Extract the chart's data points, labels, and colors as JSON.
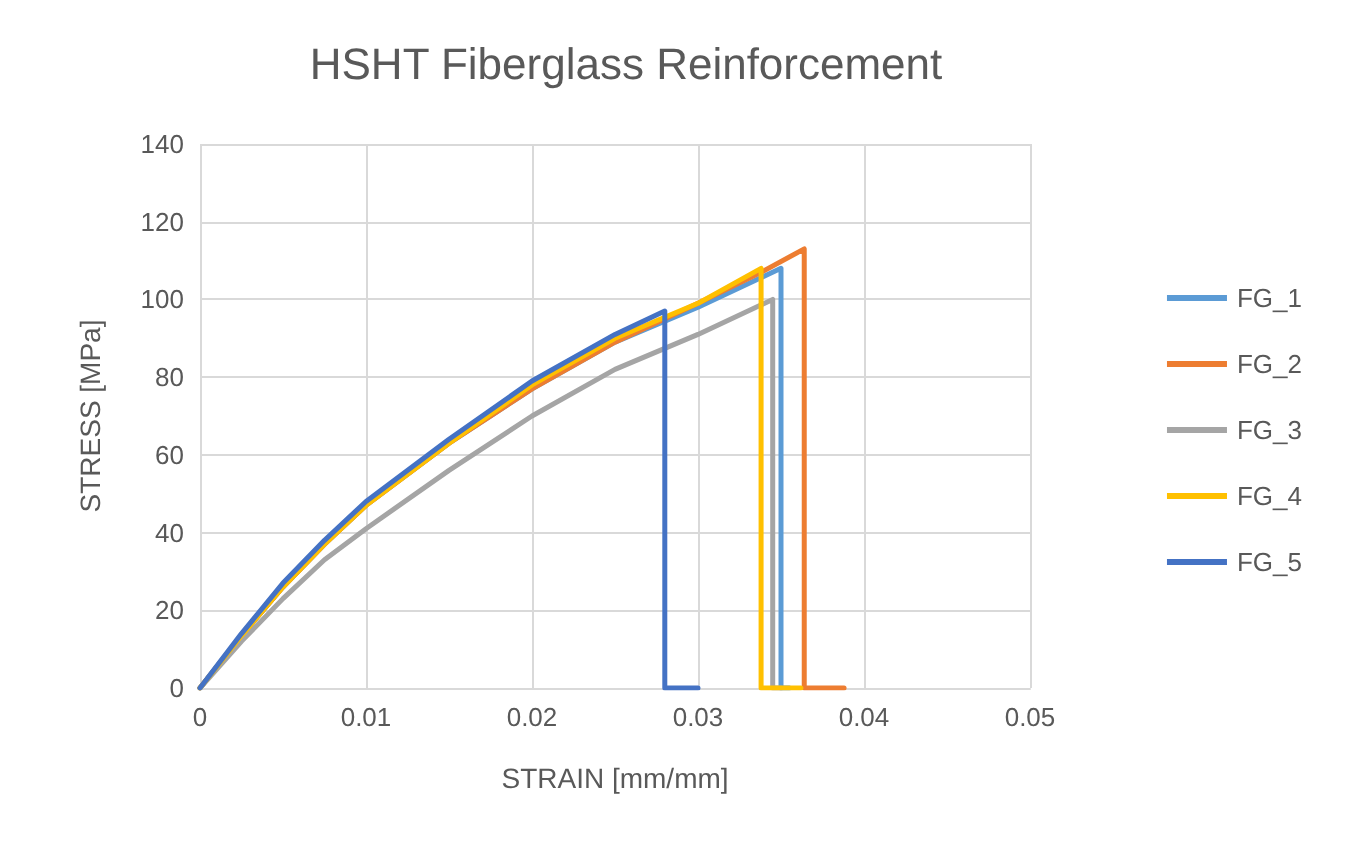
{
  "chart_data": {
    "type": "line",
    "title": "HSHT Fiberglass Reinforcement",
    "xlabel": "STRAIN [mm/mm]",
    "ylabel": "STRESS [MPa]",
    "xlim": [
      0,
      0.05
    ],
    "xticks": [
      0,
      0.01,
      0.02,
      0.03,
      0.04,
      0.05
    ],
    "ylim": [
      0,
      140
    ],
    "yticks": [
      0,
      20,
      40,
      60,
      80,
      100,
      120,
      140
    ],
    "grid": true,
    "legend": "right",
    "marker": "none",
    "line_style": "solid",
    "series": [
      {
        "name": "FG_1",
        "color": "#5b9bd5",
        "x": [
          0,
          0.0025,
          0.005,
          0.0075,
          0.01,
          0.015,
          0.02,
          0.025,
          0.03,
          0.035,
          0.035,
          0.0355
        ],
        "values": [
          0,
          13.5,
          26,
          37,
          47,
          63,
          77,
          89,
          98,
          108,
          0,
          0
        ]
      },
      {
        "name": "FG_2",
        "color": "#ed7d31",
        "x": [
          0,
          0.0025,
          0.005,
          0.0075,
          0.01,
          0.015,
          0.02,
          0.025,
          0.03,
          0.0338,
          0.0364,
          0.0364,
          0.0388
        ],
        "values": [
          0,
          13.5,
          26,
          37,
          47,
          63,
          77,
          89,
          99,
          107,
          113,
          0,
          0
        ]
      },
      {
        "name": "FG_3",
        "color": "#a5a5a5",
        "x": [
          0,
          0.0025,
          0.005,
          0.0075,
          0.01,
          0.015,
          0.02,
          0.025,
          0.03,
          0.0345,
          0.0345,
          0.035
        ],
        "values": [
          0,
          12,
          23,
          33,
          41,
          56,
          70,
          82,
          91,
          100,
          0,
          0
        ]
      },
      {
        "name": "FG_4",
        "color": "#ffc000",
        "x": [
          0,
          0.0025,
          0.005,
          0.0075,
          0.01,
          0.015,
          0.02,
          0.025,
          0.03,
          0.0338,
          0.0338,
          0.0362
        ],
        "values": [
          0,
          13.5,
          26,
          37,
          47,
          63,
          78,
          90,
          99,
          108,
          0,
          0
        ]
      },
      {
        "name": "FG_5",
        "color": "#4472c4",
        "x": [
          0,
          0.0025,
          0.005,
          0.0075,
          0.01,
          0.015,
          0.02,
          0.025,
          0.028,
          0.028,
          0.03
        ],
        "values": [
          0,
          14,
          27,
          38,
          48,
          64,
          79,
          91,
          97,
          0,
          0
        ]
      }
    ]
  }
}
